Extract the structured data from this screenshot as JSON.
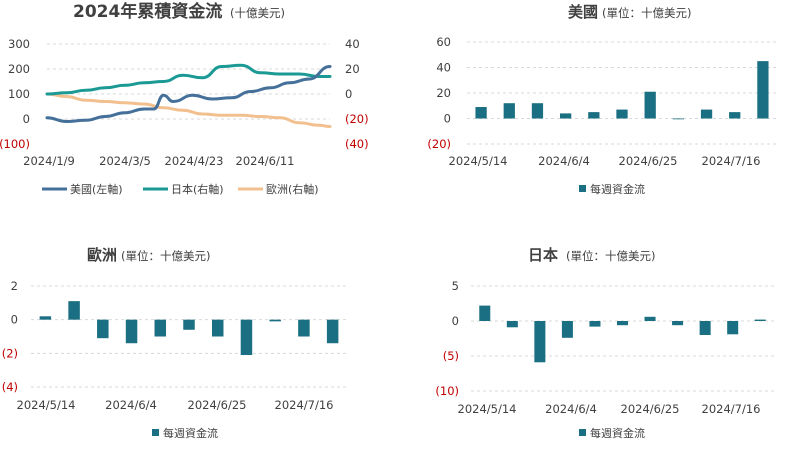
{
  "colors": {
    "us": "#44709a",
    "japan": "#1a9995",
    "europe": "#f2c08f",
    "bar": "#1a6f82",
    "grid": "#d9d9d9",
    "negative": "#c00000",
    "text": "#404040"
  },
  "chart_data": [
    {
      "type": "line",
      "title": "2024年累積資金流",
      "subtitle": "(十億美元)",
      "left_yticks": [
        "300",
        "200",
        "100",
        "0",
        "(100)"
      ],
      "right_yticks": [
        "40",
        "20",
        "0",
        "(20)",
        "(40)"
      ],
      "ylim_left": [
        -100,
        300
      ],
      "ylim_right": [
        -40,
        40
      ],
      "xticks": [
        "2024/1/9",
        "2024/3/5",
        "2024/4/23",
        "2024/6/11"
      ],
      "x_range": [
        "2024-01-02",
        "2024-07-24"
      ],
      "series": [
        {
          "name": "美國(左軸)",
          "axis": "left",
          "color": "us",
          "x": [
            "2024-01-02",
            "2024-01-16",
            "2024-01-30",
            "2024-02-13",
            "2024-02-27",
            "2024-03-12",
            "2024-03-19",
            "2024-03-26",
            "2024-04-02",
            "2024-04-16",
            "2024-04-30",
            "2024-05-14",
            "2024-05-28",
            "2024-06-11",
            "2024-06-25",
            "2024-07-09",
            "2024-07-24"
          ],
          "y": [
            5,
            -10,
            -5,
            10,
            25,
            40,
            40,
            95,
            70,
            95,
            80,
            85,
            110,
            125,
            145,
            160,
            210
          ]
        },
        {
          "name": "日本(右軸)",
          "axis": "right",
          "color": "japan",
          "x": [
            "2024-01-02",
            "2024-01-16",
            "2024-01-30",
            "2024-02-13",
            "2024-02-27",
            "2024-03-12",
            "2024-03-26",
            "2024-04-09",
            "2024-04-23",
            "2024-05-07",
            "2024-05-21",
            "2024-06-04",
            "2024-06-18",
            "2024-07-02",
            "2024-07-16",
            "2024-07-24"
          ],
          "y": [
            0,
            1,
            3,
            5,
            7,
            9,
            10,
            15,
            13,
            22,
            23,
            17,
            16,
            16,
            14,
            14
          ]
        },
        {
          "name": "歐洲(右軸)",
          "axis": "right",
          "color": "europe",
          "x": [
            "2024-01-02",
            "2024-01-16",
            "2024-01-30",
            "2024-02-13",
            "2024-02-27",
            "2024-03-12",
            "2024-03-26",
            "2024-04-09",
            "2024-04-23",
            "2024-05-07",
            "2024-05-21",
            "2024-06-04",
            "2024-06-18",
            "2024-07-02",
            "2024-07-16",
            "2024-07-24"
          ],
          "y": [
            0,
            -2,
            -5,
            -6,
            -7,
            -8,
            -11,
            -13,
            -16,
            -17,
            -17,
            -18,
            -19,
            -23,
            -25,
            -26
          ]
        }
      ]
    },
    {
      "type": "bar",
      "title": "美國",
      "subtitle": "(單位：十億美元)",
      "yticks": [
        "60",
        "40",
        "20",
        "0",
        "(20)"
      ],
      "ylim": [
        -20,
        60
      ],
      "xticks": [
        "2024/5/14",
        "2024/6/4",
        "2024/6/25",
        "2024/7/16"
      ],
      "x": [
        "2024-05-14",
        "2024-05-21",
        "2024-05-28",
        "2024-06-04",
        "2024-06-11",
        "2024-06-18",
        "2024-06-25",
        "2024-07-02",
        "2024-07-09",
        "2024-07-16",
        "2024-07-23"
      ],
      "values": [
        9,
        12,
        12,
        4,
        5,
        7,
        21,
        0,
        7,
        5,
        45
      ],
      "legend": "每週資金流"
    },
    {
      "type": "bar",
      "title": "歐洲",
      "subtitle": "(單位：十億美元)",
      "yticks": [
        "2",
        "0",
        "(2)",
        "(4)"
      ],
      "ylim": [
        -4,
        2
      ],
      "xticks": [
        "2024/5/14",
        "2024/6/4",
        "2024/6/25",
        "2024/7/16"
      ],
      "x": [
        "2024-05-14",
        "2024-05-21",
        "2024-05-28",
        "2024-06-04",
        "2024-06-11",
        "2024-06-18",
        "2024-06-25",
        "2024-07-02",
        "2024-07-09",
        "2024-07-16",
        "2024-07-23"
      ],
      "values": [
        0.2,
        1.1,
        -1.1,
        -1.4,
        -1.0,
        -0.6,
        -1.0,
        -2.1,
        -0.1,
        -1.0,
        -1.4
      ],
      "legend": "每週資金流"
    },
    {
      "type": "bar",
      "title": "日本",
      "subtitle": "(單位：十億美元)",
      "yticks": [
        "5",
        "0",
        "(5)",
        "(10)"
      ],
      "ylim": [
        -10,
        5
      ],
      "xticks": [
        "2024/5/14",
        "2024/6/4",
        "2024/6/25",
        "2024/7/16"
      ],
      "x": [
        "2024-05-14",
        "2024-05-21",
        "2024-05-28",
        "2024-06-04",
        "2024-06-11",
        "2024-06-18",
        "2024-06-25",
        "2024-07-02",
        "2024-07-09",
        "2024-07-16",
        "2024-07-23"
      ],
      "values": [
        2.2,
        -0.9,
        -5.9,
        -2.4,
        -0.8,
        -0.6,
        0.6,
        -0.6,
        -2.0,
        -1.9,
        0.2
      ],
      "legend": "每週資金流"
    }
  ]
}
